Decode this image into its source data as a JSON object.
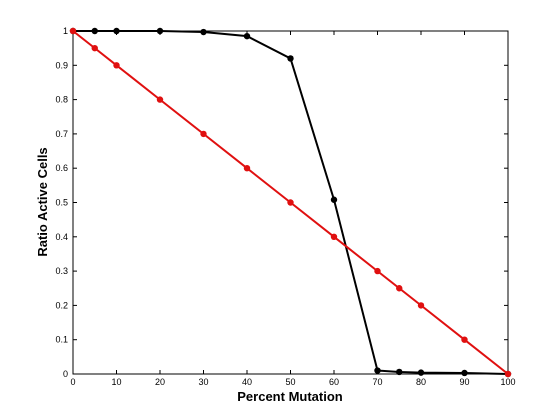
{
  "chart_data": {
    "type": "line",
    "xlabel": "Percent Mutation",
    "ylabel": "Ratio Active Cells",
    "xlim": [
      0,
      100
    ],
    "ylim": [
      0,
      1
    ],
    "x_ticks": [
      0,
      10,
      20,
      30,
      40,
      50,
      60,
      70,
      80,
      90,
      100
    ],
    "y_ticks": [
      0,
      0.1,
      0.2,
      0.3,
      0.4,
      0.5,
      0.6,
      0.7,
      0.8,
      0.9,
      1
    ],
    "x_tick_labels": [
      "0",
      "10",
      "20",
      "30",
      "40",
      "50",
      "60",
      "70",
      "80",
      "90",
      "100"
    ],
    "y_tick_labels": [
      "0",
      "0.1",
      "0.2",
      "0.3",
      "0.4",
      "0.5",
      "0.6",
      "0.7",
      "0.8",
      "0.9",
      "1"
    ],
    "grid": false,
    "series": [
      {
        "color": "#000000",
        "points": [
          [
            0,
            1
          ],
          [
            5,
            1
          ],
          [
            10,
            1
          ],
          [
            20,
            1
          ],
          [
            30,
            0.997
          ],
          [
            40,
            0.985
          ],
          [
            50,
            0.92
          ],
          [
            60,
            0.508
          ],
          [
            70,
            0.01
          ],
          [
            75,
            0.006
          ],
          [
            80,
            0.004
          ],
          [
            90,
            0.003
          ],
          [
            100,
            0
          ]
        ]
      },
      {
        "color": "#e01010",
        "points": [
          [
            0,
            1
          ],
          [
            5,
            0.95
          ],
          [
            10,
            0.9
          ],
          [
            20,
            0.8
          ],
          [
            30,
            0.7
          ],
          [
            40,
            0.6
          ],
          [
            50,
            0.5
          ],
          [
            60,
            0.4
          ],
          [
            70,
            0.3
          ],
          [
            75,
            0.25
          ],
          [
            80,
            0.2
          ],
          [
            90,
            0.1
          ],
          [
            100,
            0
          ]
        ]
      }
    ]
  }
}
